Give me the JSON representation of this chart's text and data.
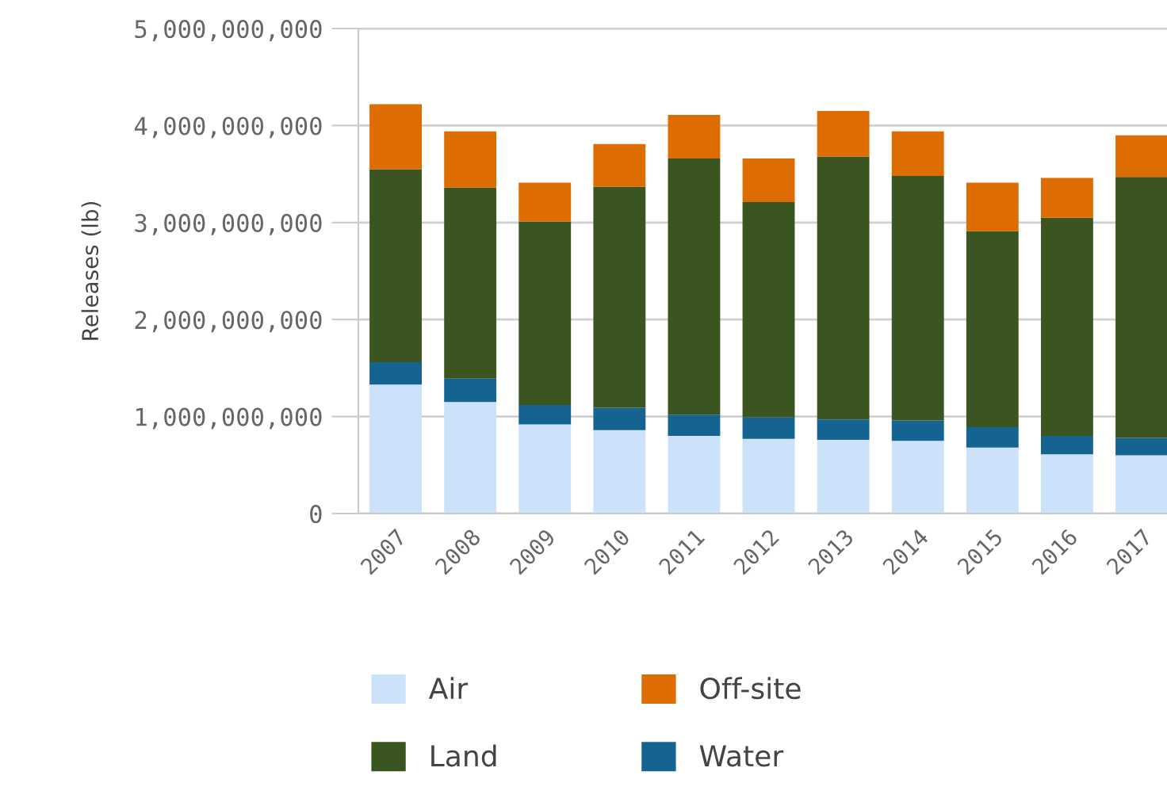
{
  "chart_data": {
    "type": "bar",
    "stacked": true,
    "ylabel": "Releases (lb)",
    "categories": [
      "2007",
      "2008",
      "2009",
      "2010",
      "2011",
      "2012",
      "2013",
      "2014",
      "2015",
      "2016",
      "2017"
    ],
    "series": [
      {
        "name": "Air",
        "color": "#cce2fa",
        "values": [
          1330000000,
          1150000000,
          920000000,
          860000000,
          800000000,
          770000000,
          760000000,
          750000000,
          680000000,
          610000000,
          600000000
        ]
      },
      {
        "name": "Water",
        "color": "#156390",
        "values": [
          230000000,
          240000000,
          200000000,
          230000000,
          220000000,
          220000000,
          210000000,
          210000000,
          210000000,
          190000000,
          180000000
        ]
      },
      {
        "name": "Land",
        "color": "#3b5520",
        "values": [
          1990000000,
          1970000000,
          1890000000,
          2280000000,
          2640000000,
          2220000000,
          2710000000,
          2520000000,
          2020000000,
          2250000000,
          2690000000
        ]
      },
      {
        "name": "Off-site",
        "color": "#dd6d00",
        "values": [
          670000000,
          580000000,
          400000000,
          440000000,
          450000000,
          450000000,
          470000000,
          460000000,
          500000000,
          410000000,
          430000000
        ]
      }
    ],
    "ylim": [
      0,
      5000000000
    ],
    "yticks": [
      {
        "value": 0,
        "label": "0"
      },
      {
        "value": 1000000000,
        "label": "1,000,000,000"
      },
      {
        "value": 2000000000,
        "label": "2,000,000,000"
      },
      {
        "value": 3000000000,
        "label": "3,000,000,000"
      },
      {
        "value": 4000000000,
        "label": "4,000,000,000"
      },
      {
        "value": 5000000000,
        "label": "5,000,000,000"
      }
    ],
    "grid": "y",
    "legend": "bottom"
  }
}
